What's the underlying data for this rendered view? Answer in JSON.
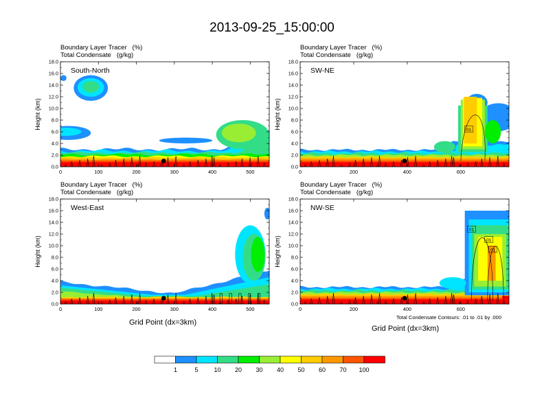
{
  "title": "2013-09-25_15:00:00",
  "panel_title_1": "Boundary Layer Tracer   (%)",
  "panel_title_2": "Total Condensate   (g/kg)",
  "ylabel": "Height (km)",
  "xlabel": "Grid Point (dx=3km)",
  "footnote": "Total Condensate Contours: .01 to .01 by .000",
  "contour_label": "01",
  "colors": {
    "levels": [
      "#ffffff",
      "#1e90ff",
      "#00e5ff",
      "#33dd88",
      "#00ee00",
      "#99ee33",
      "#ffff00",
      "#ffcc00",
      "#ff9900",
      "#ff5500",
      "#ff0000"
    ],
    "background": "#ffffff"
  },
  "colorbar": {
    "labels": [
      "1",
      "5",
      "10",
      "20",
      "30",
      "40",
      "50",
      "60",
      "70",
      "100"
    ]
  },
  "chart_data": [
    {
      "type": "heatmap",
      "name": "South-North",
      "ylim": [
        0,
        18
      ],
      "yticks": [
        "0.0",
        "2.0",
        "4.0",
        "6.0",
        "8.0",
        "10.0",
        "12.0",
        "14.0",
        "16.0",
        "18.0"
      ],
      "xlim": [
        0,
        550
      ],
      "xticks": [
        "0",
        "100",
        "200",
        "300",
        "400",
        "500"
      ],
      "marker": [
        272,
        1.0
      ]
    },
    {
      "type": "heatmap",
      "name": "SW-NE",
      "ylim": [
        0,
        18
      ],
      "yticks": [
        "0.0",
        "2.0",
        "4.0",
        "6.0",
        "8.0",
        "10.0",
        "12.0",
        "14.0",
        "16.0",
        "18.0"
      ],
      "xlim": [
        0,
        780
      ],
      "xticks": [
        "0",
        "200",
        "400",
        "600"
      ],
      "marker": [
        390,
        1.0
      ]
    },
    {
      "type": "heatmap",
      "name": "West-East",
      "ylim": [
        0,
        18
      ],
      "yticks": [
        "0.0",
        "2.0",
        "4.0",
        "6.0",
        "8.0",
        "10.0",
        "12.0",
        "14.0",
        "16.0",
        "18.0"
      ],
      "xlim": [
        0,
        550
      ],
      "xticks": [
        "0",
        "100",
        "200",
        "300",
        "400",
        "500"
      ],
      "marker": [
        272,
        1.0
      ]
    },
    {
      "type": "heatmap",
      "name": "NW-SE",
      "ylim": [
        0,
        18
      ],
      "yticks": [
        "0.0",
        "2.0",
        "4.0",
        "6.0",
        "8.0",
        "10.0",
        "12.0",
        "14.0",
        "16.0",
        "18.0"
      ],
      "xlim": [
        0,
        780
      ],
      "xticks": [
        "0",
        "200",
        "400",
        "600"
      ],
      "marker": [
        390,
        1.0
      ]
    }
  ]
}
